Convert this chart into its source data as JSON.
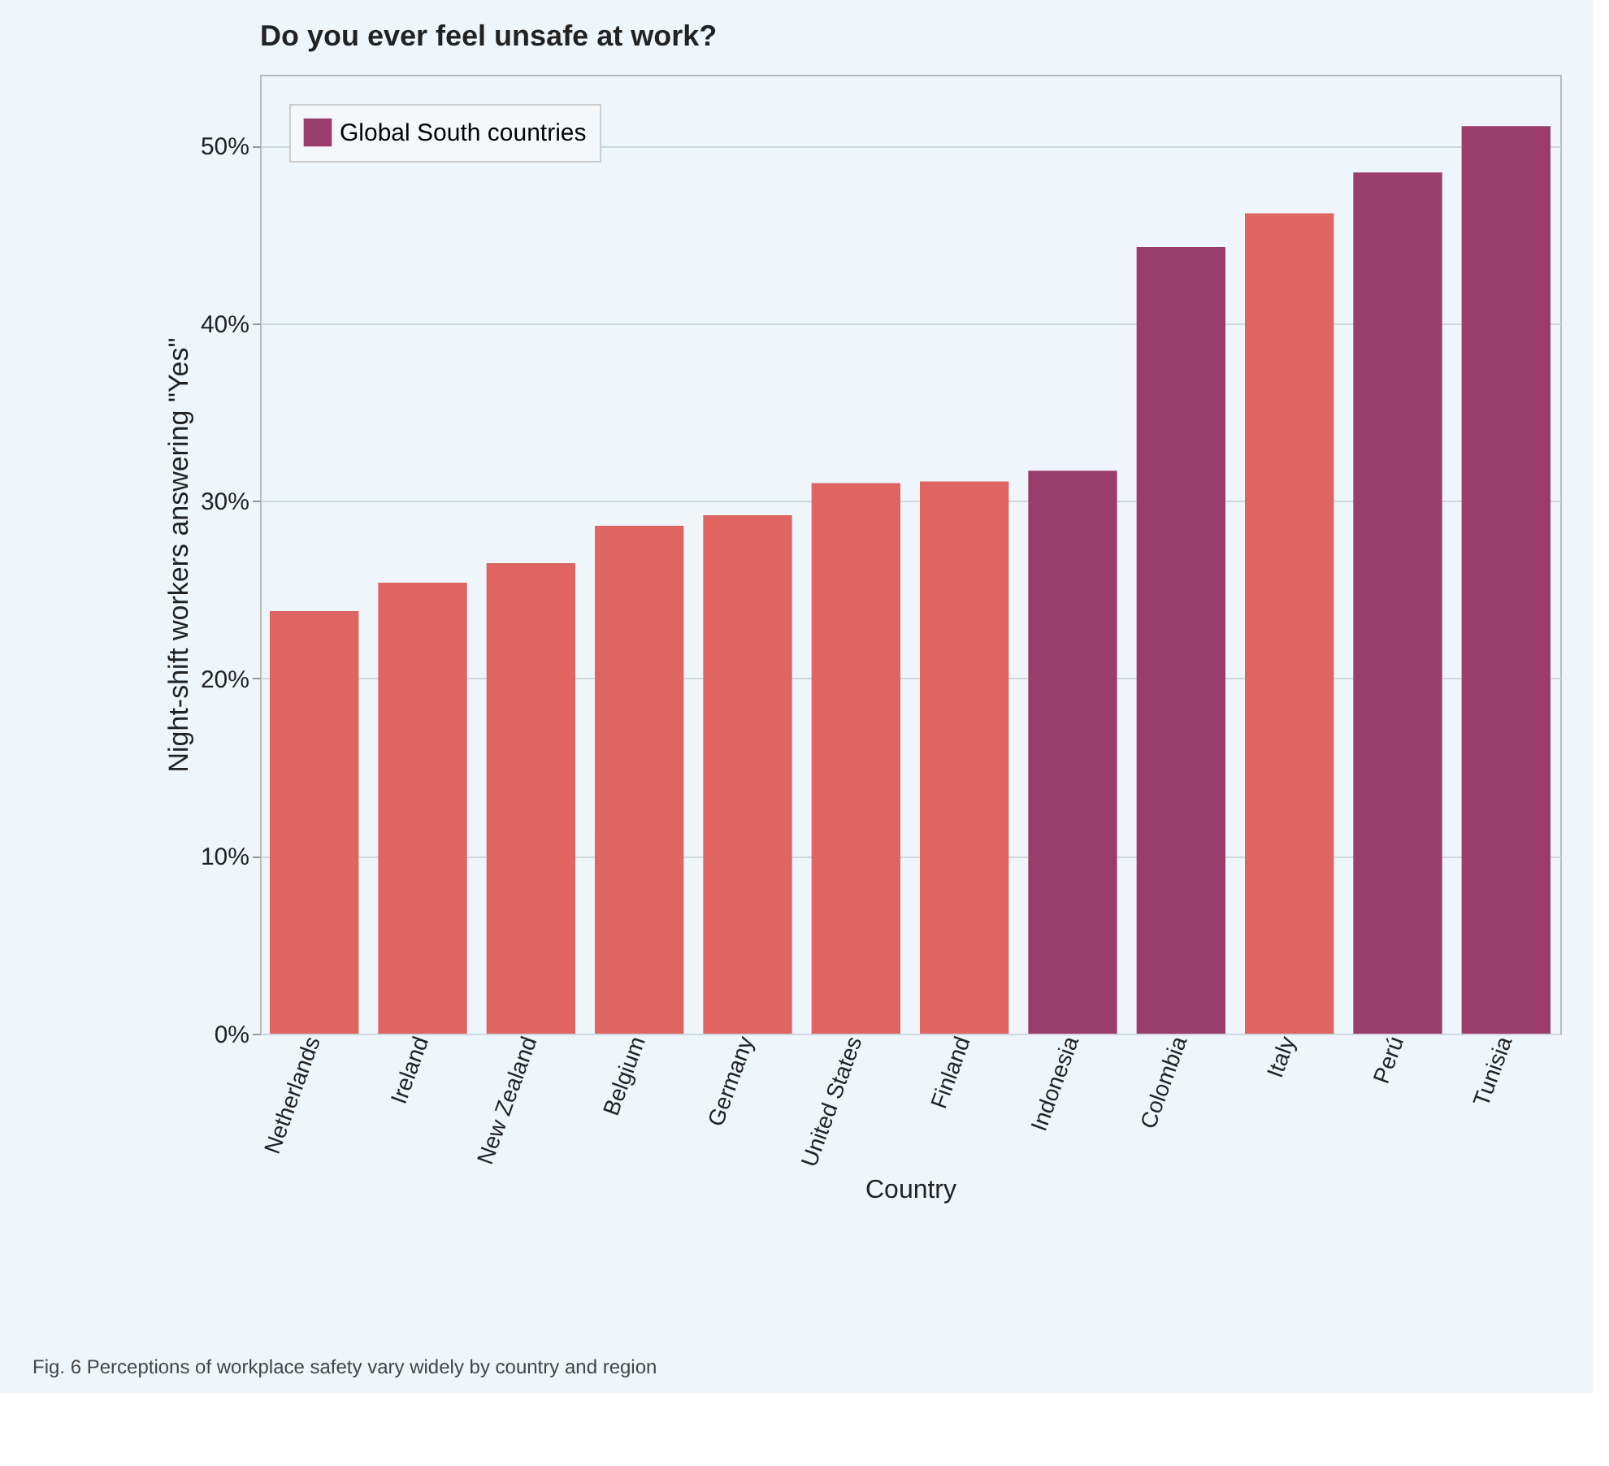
{
  "chart_data": {
    "type": "bar",
    "title": "Do you ever feel unsafe at work?",
    "xlabel": "Country",
    "ylabel": "Night-shift workers answering \"Yes\"",
    "categories": [
      "Netherlands",
      "Ireland",
      "New Zealand",
      "Belgium",
      "Germany",
      "United States",
      "Finland",
      "Indonesia",
      "Colombia",
      "Italy",
      "Perú",
      "Tunisia"
    ],
    "series": [
      {
        "color": "#df6563",
        "values": [
          23.8,
          25.4,
          26.5,
          28.6,
          29.2,
          31.0,
          31.1,
          null,
          null,
          46.2,
          null,
          null
        ]
      },
      {
        "name": "Global South countries",
        "color": "#9b3d6a",
        "values": [
          null,
          null,
          null,
          null,
          null,
          null,
          null,
          31.7,
          44.3,
          null,
          48.5,
          51.1
        ]
      }
    ],
    "ylim": [
      0,
      54
    ],
    "yticks": [
      {
        "value": 0,
        "label": "0%"
      },
      {
        "value": 10,
        "label": "10%"
      },
      {
        "value": 20,
        "label": "20%"
      },
      {
        "value": 30,
        "label": "30%"
      },
      {
        "value": 40,
        "label": "40%"
      },
      {
        "value": 50,
        "label": "50%"
      }
    ],
    "grid": "y",
    "legend": "top left",
    "annotations": [
      "Fig. 6 Perceptions of workplace safety vary widely by country and region"
    ]
  }
}
